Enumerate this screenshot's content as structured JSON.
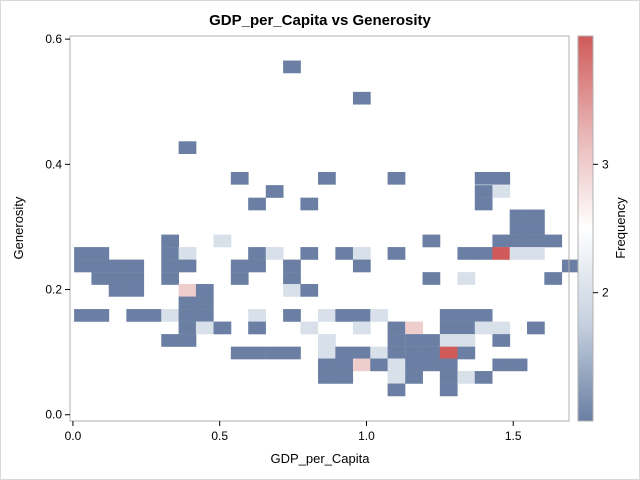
{
  "chart_data": {
    "type": "heatmap",
    "title": "GDP_per_Capita vs Generosity",
    "xlabel": "GDP_per_Capita",
    "ylabel": "Generosity",
    "xlim": [
      -0.01,
      1.69
    ],
    "ylim": [
      -0.01,
      0.605
    ],
    "x_ticks": [
      "0.0",
      "0.5",
      "1.0",
      "1.5"
    ],
    "x_tick_values": [
      0.0,
      0.5,
      1.0,
      1.5
    ],
    "y_ticks": [
      "0.0",
      "0.2",
      "0.4",
      "0.6"
    ],
    "y_tick_values": [
      0.0,
      0.2,
      0.4,
      0.6
    ],
    "bin_width_x": 0.0594,
    "bin_width_y": 0.0198,
    "grid": false,
    "colorbar": {
      "label": "Frequency",
      "ticks": [
        "2",
        "3"
      ],
      "tick_values": [
        2,
        3
      ],
      "range": [
        1,
        4
      ],
      "colors": [
        "#6a7fa3",
        "#c5d0df",
        "#ffffff",
        "#e8b4b4",
        "#d05a5a"
      ]
    },
    "cells": [
      [
        0.004,
        0.149,
        1
      ],
      [
        0.004,
        0.248,
        1
      ],
      [
        0.004,
        0.228,
        1
      ],
      [
        0.063,
        0.248,
        1
      ],
      [
        0.063,
        0.228,
        1
      ],
      [
        0.063,
        0.208,
        1
      ],
      [
        0.063,
        0.149,
        1
      ],
      [
        0.122,
        0.228,
        1
      ],
      [
        0.122,
        0.208,
        1
      ],
      [
        0.122,
        0.189,
        1
      ],
      [
        0.182,
        0.228,
        1
      ],
      [
        0.182,
        0.208,
        1
      ],
      [
        0.182,
        0.189,
        1
      ],
      [
        0.182,
        0.149,
        1
      ],
      [
        0.241,
        0.149,
        1
      ],
      [
        0.301,
        0.248,
        1
      ],
      [
        0.301,
        0.228,
        1
      ],
      [
        0.301,
        0.268,
        1
      ],
      [
        0.301,
        0.208,
        1
      ],
      [
        0.301,
        0.149,
        2
      ],
      [
        0.301,
        0.109,
        1
      ],
      [
        0.36,
        0.417,
        1
      ],
      [
        0.36,
        0.248,
        2
      ],
      [
        0.36,
        0.228,
        1
      ],
      [
        0.36,
        0.189,
        3
      ],
      [
        0.36,
        0.169,
        1
      ],
      [
        0.36,
        0.149,
        1
      ],
      [
        0.36,
        0.129,
        1
      ],
      [
        0.36,
        0.109,
        1
      ],
      [
        0.419,
        0.189,
        1
      ],
      [
        0.419,
        0.169,
        1
      ],
      [
        0.419,
        0.149,
        1
      ],
      [
        0.419,
        0.129,
        2
      ],
      [
        0.479,
        0.268,
        2
      ],
      [
        0.479,
        0.129,
        1
      ],
      [
        0.538,
        0.368,
        1
      ],
      [
        0.538,
        0.228,
        1
      ],
      [
        0.538,
        0.208,
        1
      ],
      [
        0.538,
        0.089,
        1
      ],
      [
        0.597,
        0.327,
        1
      ],
      [
        0.597,
        0.248,
        1
      ],
      [
        0.597,
        0.228,
        1
      ],
      [
        0.597,
        0.149,
        2
      ],
      [
        0.597,
        0.129,
        1
      ],
      [
        0.597,
        0.089,
        1
      ],
      [
        0.657,
        0.347,
        1
      ],
      [
        0.657,
        0.248,
        2
      ],
      [
        0.657,
        0.089,
        1
      ],
      [
        0.716,
        0.546,
        1
      ],
      [
        0.716,
        0.228,
        1
      ],
      [
        0.716,
        0.208,
        1
      ],
      [
        0.716,
        0.189,
        2
      ],
      [
        0.716,
        0.149,
        1
      ],
      [
        0.716,
        0.089,
        1
      ],
      [
        0.775,
        0.327,
        1
      ],
      [
        0.775,
        0.248,
        1
      ],
      [
        0.775,
        0.189,
        1
      ],
      [
        0.775,
        0.129,
        2
      ],
      [
        0.835,
        0.368,
        1
      ],
      [
        0.835,
        0.149,
        2
      ],
      [
        0.835,
        0.109,
        2
      ],
      [
        0.835,
        0.089,
        2
      ],
      [
        0.835,
        0.07,
        1
      ],
      [
        0.835,
        0.05,
        1
      ],
      [
        0.894,
        0.248,
        1
      ],
      [
        0.894,
        0.149,
        1
      ],
      [
        0.894,
        0.089,
        1
      ],
      [
        0.894,
        0.07,
        1
      ],
      [
        0.894,
        0.05,
        1
      ],
      [
        0.954,
        0.496,
        1
      ],
      [
        0.954,
        0.248,
        2
      ],
      [
        0.954,
        0.228,
        1
      ],
      [
        0.954,
        0.149,
        1
      ],
      [
        0.954,
        0.129,
        2
      ],
      [
        0.954,
        0.089,
        1
      ],
      [
        0.954,
        0.07,
        3
      ],
      [
        1.013,
        0.149,
        2
      ],
      [
        1.013,
        0.089,
        2
      ],
      [
        1.013,
        0.07,
        1
      ],
      [
        1.072,
        0.368,
        1
      ],
      [
        1.072,
        0.248,
        1
      ],
      [
        1.072,
        0.129,
        1
      ],
      [
        1.072,
        0.109,
        1
      ],
      [
        1.072,
        0.089,
        1
      ],
      [
        1.072,
        0.07,
        2
      ],
      [
        1.072,
        0.05,
        2
      ],
      [
        1.072,
        0.03,
        1
      ],
      [
        1.132,
        0.129,
        3
      ],
      [
        1.132,
        0.109,
        1
      ],
      [
        1.132,
        0.089,
        1
      ],
      [
        1.132,
        0.07,
        1
      ],
      [
        1.132,
        0.05,
        1
      ],
      [
        1.191,
        0.268,
        1
      ],
      [
        1.191,
        0.208,
        1
      ],
      [
        1.191,
        0.109,
        1
      ],
      [
        1.191,
        0.089,
        1
      ],
      [
        1.191,
        0.07,
        1
      ],
      [
        1.25,
        0.149,
        1
      ],
      [
        1.25,
        0.129,
        1
      ],
      [
        1.25,
        0.109,
        2
      ],
      [
        1.25,
        0.089,
        4
      ],
      [
        1.25,
        0.07,
        1
      ],
      [
        1.25,
        0.05,
        1
      ],
      [
        1.25,
        0.03,
        1
      ],
      [
        1.31,
        0.248,
        1
      ],
      [
        1.31,
        0.208,
        2
      ],
      [
        1.31,
        0.149,
        1
      ],
      [
        1.31,
        0.129,
        1
      ],
      [
        1.31,
        0.109,
        2
      ],
      [
        1.31,
        0.089,
        1
      ],
      [
        1.31,
        0.05,
        2
      ],
      [
        1.369,
        0.368,
        1
      ],
      [
        1.369,
        0.347,
        1
      ],
      [
        1.369,
        0.327,
        1
      ],
      [
        1.369,
        0.248,
        1
      ],
      [
        1.369,
        0.149,
        1
      ],
      [
        1.369,
        0.129,
        2
      ],
      [
        1.369,
        0.05,
        1
      ],
      [
        1.429,
        0.368,
        1
      ],
      [
        1.429,
        0.347,
        2
      ],
      [
        1.429,
        0.268,
        1
      ],
      [
        1.429,
        0.248,
        4
      ],
      [
        1.429,
        0.129,
        2
      ],
      [
        1.429,
        0.109,
        1
      ],
      [
        1.429,
        0.07,
        1
      ],
      [
        1.488,
        0.308,
        1
      ],
      [
        1.488,
        0.288,
        1
      ],
      [
        1.488,
        0.268,
        1
      ],
      [
        1.488,
        0.248,
        2
      ],
      [
        1.488,
        0.07,
        1
      ],
      [
        1.547,
        0.308,
        1
      ],
      [
        1.547,
        0.288,
        1
      ],
      [
        1.547,
        0.268,
        1
      ],
      [
        1.547,
        0.248,
        2
      ],
      [
        1.547,
        0.129,
        1
      ],
      [
        1.606,
        0.268,
        1
      ],
      [
        1.606,
        0.208,
        1
      ],
      [
        1.666,
        0.228,
        1
      ]
    ]
  }
}
